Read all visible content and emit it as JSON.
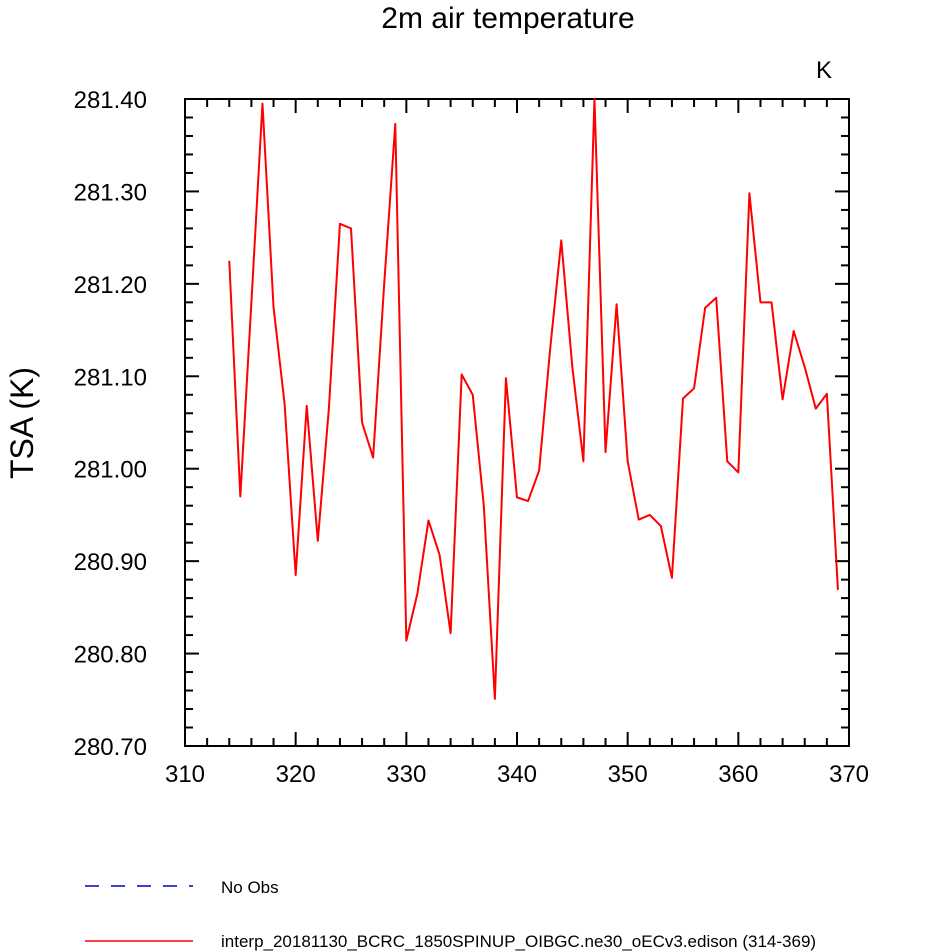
{
  "chart_data": {
    "type": "line",
    "title": "2m air temperature",
    "xlabel": "",
    "ylabel": "TSA  (K)",
    "units_label": "K",
    "xlim": [
      310,
      370
    ],
    "ylim": [
      280.7,
      281.4
    ],
    "x_ticks": [
      310,
      320,
      330,
      340,
      350,
      360,
      370
    ],
    "x_tick_labels": [
      "310",
      "320",
      "330",
      "340",
      "350",
      "360",
      "370"
    ],
    "y_ticks": [
      280.7,
      280.8,
      280.9,
      281.0,
      281.1,
      281.2,
      281.3,
      281.4
    ],
    "y_tick_labels": [
      "280.70",
      "280.80",
      "280.90",
      "281.00",
      "281.10",
      "281.20",
      "281.30",
      "281.40"
    ],
    "grid": false,
    "series": [
      {
        "name": "interp_20181130_BCRC_1850SPINUP_OIBGC.ne30_oECv3.edison (314-369)",
        "color": "#ff0000",
        "style": "solid",
        "x": [
          314,
          315,
          316,
          317,
          318,
          319,
          320,
          321,
          322,
          323,
          324,
          325,
          326,
          327,
          328,
          329,
          330,
          331,
          332,
          333,
          334,
          335,
          336,
          337,
          338,
          339,
          340,
          341,
          342,
          343,
          344,
          345,
          346,
          347,
          348,
          349,
          350,
          351,
          352,
          353,
          354,
          355,
          356,
          357,
          358,
          359,
          360,
          361,
          362,
          363,
          364,
          365,
          366,
          367,
          368,
          369
        ],
        "values": [
          281.225,
          280.97,
          281.18,
          281.395,
          281.175,
          281.07,
          280.885,
          281.068,
          280.922,
          281.065,
          281.265,
          281.26,
          281.05,
          281.012,
          281.2,
          281.373,
          280.814,
          280.865,
          280.944,
          280.907,
          280.822,
          281.102,
          281.08,
          280.96,
          280.751,
          281.098,
          280.969,
          280.965,
          280.998,
          281.13,
          281.247,
          281.11,
          281.008,
          281.4,
          281.018,
          281.178,
          281.008,
          280.945,
          280.95,
          280.938,
          280.882,
          281.076,
          281.087,
          281.174,
          281.185,
          281.008,
          280.996,
          281.298,
          281.18,
          281.18,
          281.075,
          281.149,
          281.11,
          281.065,
          281.081,
          280.869
        ]
      }
    ],
    "legend": [
      {
        "label": "No Obs",
        "color": "#0000cc",
        "style": "dashed"
      },
      {
        "label": "interp_20181130_BCRC_1850SPINUP_OIBGC.ne30_oECv3.edison (314-369)",
        "color": "#ff0000",
        "style": "solid"
      }
    ],
    "legend_position": "bottom-left"
  }
}
